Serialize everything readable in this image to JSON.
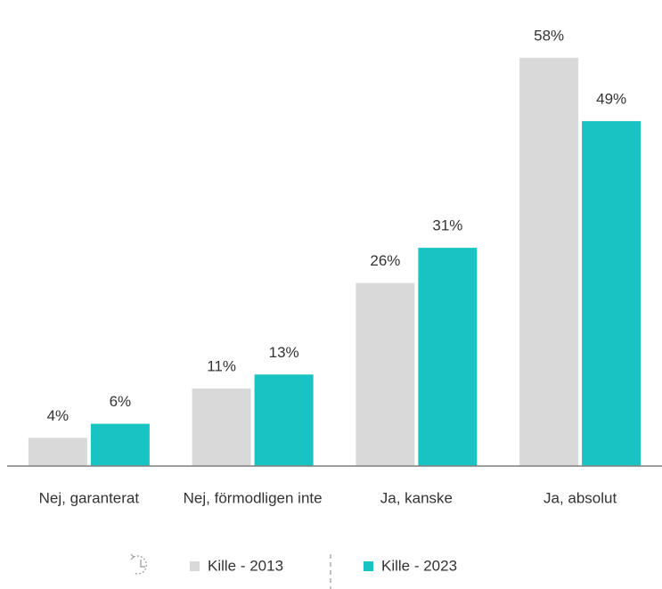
{
  "chart_data": {
    "type": "bar",
    "categories": [
      "Nej, garanterat",
      "Nej, förmodligen inte",
      "Ja, kanske",
      "Ja, absolut"
    ],
    "series": [
      {
        "name": "Kille - 2013",
        "color": "#d9d9d9",
        "values": [
          4,
          11,
          26,
          58
        ],
        "value_labels": [
          "4%",
          "11%",
          "26%",
          "58%"
        ]
      },
      {
        "name": "Kille - 2023",
        "color": "#17c3c3",
        "values": [
          6,
          13,
          31,
          49
        ],
        "value_labels": [
          "6%",
          "13%",
          "31%",
          "49%"
        ]
      }
    ],
    "ylim": [
      0,
      60
    ]
  }
}
